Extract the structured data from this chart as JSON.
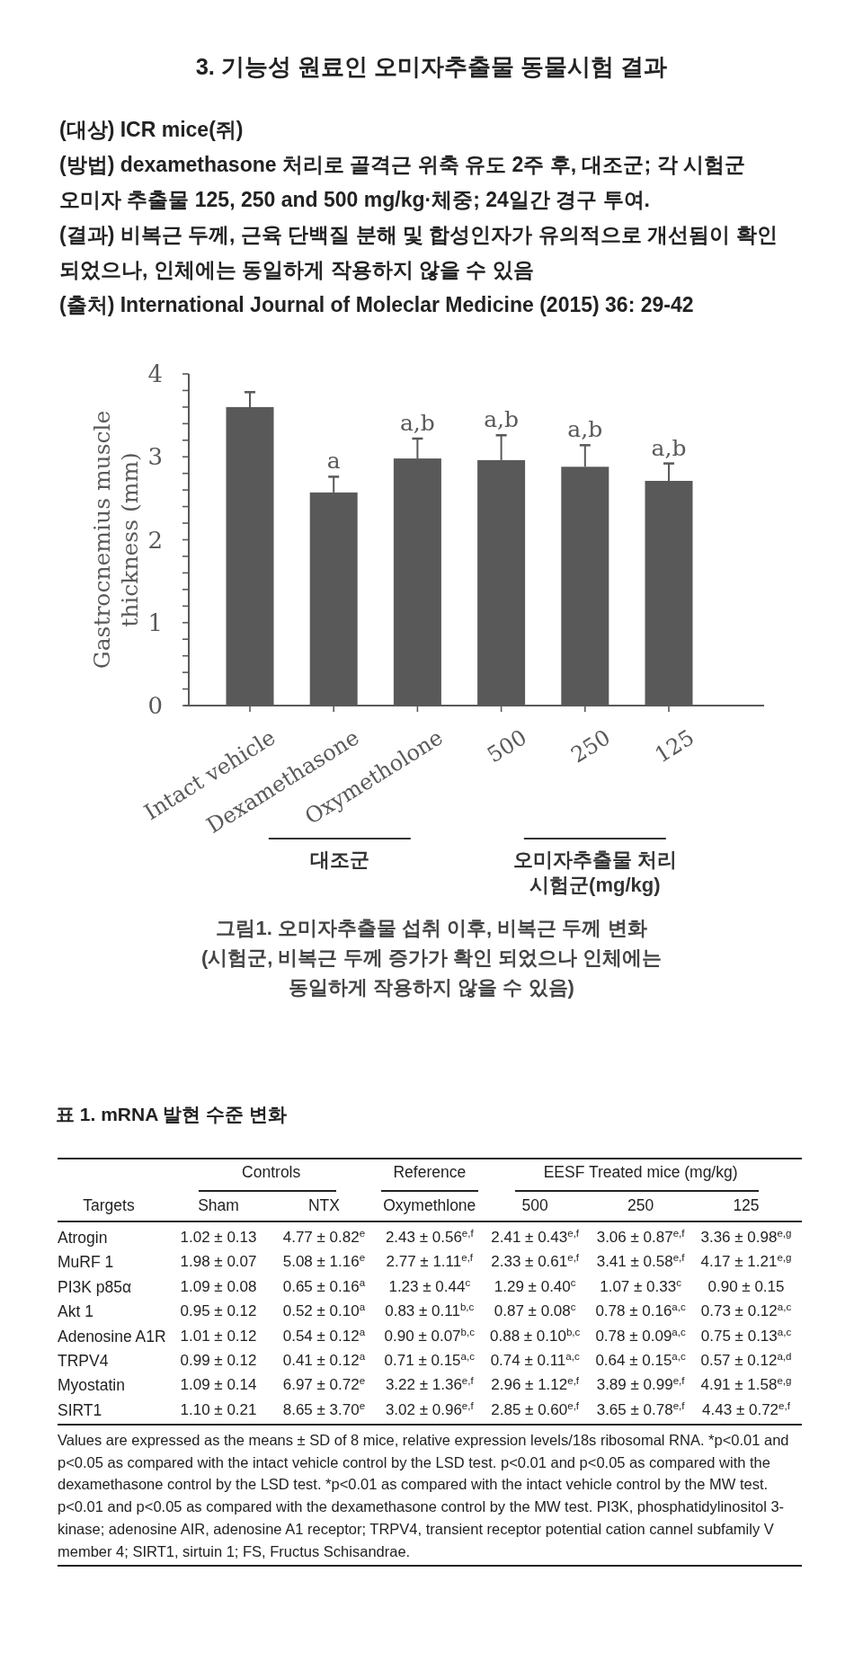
{
  "chart_data": [
    {
      "type": "other",
      "title": "3. 기능성 원료인 오미자추출물 동물시험 결과",
      "annotations": [
        "(대상) ICR mice(쥐)",
        "(방법) dexamethasone 처리로 골격근 위축 유도 2주 후, 대조군; 각 시험군 오미자 추출물 125, 250 and 500 mg/kg·체중; 24일간 경구 투여.",
        "(결과) 비복근 두께, 근육 단백질 분해 및 합성인자가 유의적으로 개선됨이 확인 되었으나, 인체에는 동일하게 작용하지 않을 수 있음",
        "(출처) International Journal of Moleclar Medicine (2015) 36: 29-42"
      ]
    },
    {
      "type": "bar",
      "ylabel": "Gastrocnemius muscle thickness (mm)",
      "categories": [
        "Intact vehicle",
        "Dexamethasone",
        "Oxymetholone",
        "500",
        "250",
        "125"
      ],
      "values": [
        3.6,
        2.57,
        2.98,
        2.96,
        2.88,
        2.71
      ],
      "errors": [
        [
          3.6,
          3.78
        ],
        [
          2.57,
          2.76
        ],
        [
          2.98,
          3.22
        ],
        [
          2.96,
          3.26
        ],
        [
          2.88,
          3.14
        ],
        [
          2.71,
          2.92
        ]
      ],
      "color": "#595959",
      "ylim": [
        0,
        4
      ],
      "yticks": [
        0,
        {
          "value": 0.2,
          "label": null
        },
        {
          "value": 0.4,
          "label": null
        },
        {
          "value": 0.6,
          "label": null
        },
        {
          "value": 0.8,
          "label": null
        },
        1,
        {
          "value": 1.2,
          "label": null
        },
        {
          "value": 1.4,
          "label": null
        },
        {
          "value": 1.6,
          "label": null
        },
        {
          "value": 1.8,
          "label": null
        },
        2,
        {
          "value": 2.2,
          "label": null
        },
        {
          "value": 2.4,
          "label": null
        },
        {
          "value": 2.6,
          "label": null
        },
        {
          "value": 2.8,
          "label": null
        },
        3,
        {
          "value": 3.2,
          "label": null
        },
        {
          "value": 3.4,
          "label": null
        },
        {
          "value": 3.6,
          "label": null
        },
        {
          "value": 3.8,
          "label": null
        },
        4
      ],
      "annotations": [
        {
          "text": "a",
          "x": "Dexamethasone",
          "y": 2.76
        },
        {
          "text": "a,b",
          "x": "Oxymetholone",
          "y": 3.22
        },
        {
          "text": "a,b",
          "x": "500",
          "y": 3.26
        },
        {
          "text": "a,b",
          "x": "250",
          "y": 3.14
        },
        {
          "text": "a,b",
          "x": "125",
          "y": 2.92
        },
        "대조군",
        "오미자추출물 처리 시험군(mg/kg)",
        "그림1. 오미자추출물 섭취 이후, 비복근 두께 변화\n(시험군, 비복근 두께 증가가 확인 되었으나 인체에는 동일하게 작용하지 않을 수 있음)"
      ]
    },
    {
      "type": "other",
      "title": "표 1. mRNA 발현 수준 변화",
      "ylabel": "Targets",
      "categories": [
        "Sham",
        "NTX",
        "Oxymethlone",
        "500",
        "250",
        "125"
      ],
      "y_categories": [
        "Atrogin",
        "MuRF 1",
        "PI3K p85α",
        "Akt 1",
        "Adenosine A1R",
        "TRPV4",
        "Myostatin",
        "SIRT1"
      ],
      "cell_labels": [
        [
          "1.02 ± 0.13",
          "4.77 ± 0.82$^{e}$",
          "2.43 ± 0.56$^{e,f}$",
          "2.41 ± 0.43$^{e,f}$",
          "3.06 ± 0.87$^{e,f}$",
          "3.36 ± 0.98$^{e,g}$"
        ],
        [
          "1.98 ± 0.07",
          "5.08 ± 1.16$^{e}$",
          "2.77 ± 1.11$^{e,f}$",
          "2.33 ± 0.61$^{e,f}$",
          "3.41 ± 0.58$^{e,f}$",
          "4.17 ± 1.21$^{e,g}$"
        ],
        [
          "1.09 ± 0.08",
          "0.65 ± 0.16$^{a}$",
          "1.23 ± 0.44$^{c}$",
          "1.29 ± 0.40$^{c}$",
          "1.07 ± 0.33$^{c}$",
          "0.90 ± 0.15"
        ],
        [
          "0.95 ± 0.12",
          "0.52 ± 0.10$^{a}$",
          "0.83 ± 0.11$^{b,c}$",
          "0.87 ± 0.08$^{c}$",
          "0.78 ± 0.16$^{a,c}$",
          "0.73 ± 0.12$^{a,c}$"
        ],
        [
          "1.01 ± 0.12",
          "0.54 ± 0.12$^{a}$",
          "0.90 ± 0.07$^{b,c}$",
          "0.88 ± 0.10$^{b,c}$",
          "0.78 ± 0.09$^{a,c}$",
          "0.75 ± 0.13$^{a,c}$"
        ],
        [
          "0.99 ± 0.12",
          "0.41 ± 0.12$^{a}$",
          "0.71 ± 0.15$^{a,c}$",
          "0.74 ± 0.11$^{a,c}$",
          "0.64 ± 0.15$^{a,c}$",
          "0.57 ± 0.12$^{a,d}$"
        ],
        [
          "1.09 ± 0.14",
          "6.97 ± 0.72$^{e}$",
          "3.22 ± 1.36$^{e,f}$",
          "2.96 ± 1.12$^{e,f}$",
          "3.89 ± 0.99$^{e,f}$",
          "4.91 ± 1.58$^{e,g}$"
        ],
        [
          "1.10 ± 0.21",
          "8.65 ± 3.70$^{e}$",
          "3.02 ± 0.96$^{e,f}$",
          "2.85 ± 0.60$^{e,f}$",
          "3.65 ± 0.78$^{e,f}$",
          "4.43 ± 0.72$^{e,f}$"
        ]
      ],
      "annotations": [
        "Controls",
        "Reference",
        "EESF Treated mice (mg/kg)",
        "Values are expressed as the means ± SD of 8 mice, relative expression levels/18s ribosomal RNA. *p<0.01 and p<0.05 as compared with the intact vehicle control by the LSD test. p<0.01 and p<0.05 as compared with the dexamethasone control by the LSD test. *p<0.01 as compared with the intact vehicle control by the MW test. p<0.01 and p<0.05 as compared with the dexamethasone control by the MW test. PI3K, phosphatidylinositol 3-kinase; adenosine AIR, adenosine A1 receptor; TRPV4, transient receptor potential cation cannel subfamily V member 4; SIRT1, sirtuin 1; FS, Fructus Schisandrae."
      ]
    }
  ]
}
